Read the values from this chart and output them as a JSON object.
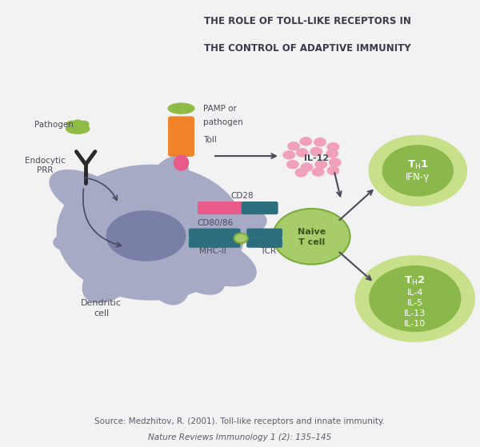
{
  "title_line1": "THE ROLE OF TOLL-LIKE RECEPTORS IN",
  "title_line2": "THE CONTROL OF ADAPTIVE IMMUNITY",
  "title_bg": "#d8dce8",
  "main_bg": "#e8eaf0",
  "outer_bg": "#f2f2f2",
  "dendritic_color": "#9ea3c0",
  "dendritic_nucleus_color": "#7a7fa8",
  "pathogen_color": "#8fbc44",
  "pamp_color": "#8fbc44",
  "toll_color": "#f0832a",
  "toll_receptor_color": "#e85a8a",
  "cd28_dc_color": "#e85a8a",
  "cd28_tcell_color": "#2d6e7e",
  "cd80_color": "#2d6e7e",
  "il12_color": "#f0a0b8",
  "naive_t_color": "#a8cc6a",
  "naive_t_border": "#7aaa3a",
  "th_circle_outer": "#c8e08a",
  "th_circle_inner": "#8ab84a",
  "text_color": "#4a4a5a",
  "arrow_color": "#4a4a5a",
  "source_text": "Source: Medzhitov, R. (2001). Toll-like receptors and innate immunity.",
  "source_text2": "Nature Reviews Immunology 1 (2): 135–145"
}
